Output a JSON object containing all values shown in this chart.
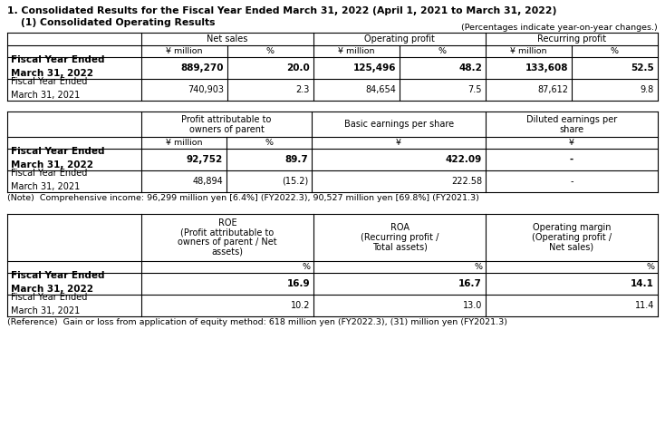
{
  "title1": "1. Consolidated Results for the Fiscal Year Ended March 31, 2022 (April 1, 2021 to March 31, 2022)",
  "title2": "    (1) Consolidated Operating Results",
  "pct_note": "(Percentages indicate year-on-year changes.)",
  "table1": {
    "col_groups": [
      "Net sales",
      "Operating profit",
      "Recurring profit"
    ],
    "sub_cols": [
      "¥ million",
      "%",
      "¥ million",
      "%",
      "¥ million",
      "%"
    ],
    "row1_label": [
      "Fiscal Year Ended",
      "March 31, 2022"
    ],
    "row1_bold": true,
    "row1_data": [
      "889,270",
      "20.0",
      "125,496",
      "48.2",
      "133,608",
      "52.5"
    ],
    "row2_label": [
      "Fiscal Year Ended",
      "March 31, 2021"
    ],
    "row2_bold": false,
    "row2_data": [
      "740,903",
      "2.3",
      "84,654",
      "7.5",
      "87,612",
      "9.8"
    ]
  },
  "table2": {
    "col_groups": [
      "Profit attributable to\nowners of parent",
      "Basic earnings per share",
      "Diluted earnings per\nshare"
    ],
    "sub_cols": [
      "¥ million",
      "%",
      "¥",
      "¥"
    ],
    "row1_label": [
      "Fiscal Year Ended",
      "March 31, 2022"
    ],
    "row1_bold": true,
    "row1_data": [
      "92,752",
      "89.7",
      "422.09",
      "-"
    ],
    "row2_label": [
      "Fiscal Year Ended",
      "March 31, 2021"
    ],
    "row2_bold": false,
    "row2_data": [
      "48,894",
      "(15.2)",
      "222.58",
      "-"
    ],
    "note": "(Note)  Comprehensive income: 96,299 million yen [6.4%] (FY2022.3), 90,527 million yen [69.8%] (FY2021.3)"
  },
  "table3": {
    "col_groups": [
      "ROE\n(Profit attributable to\nowners of parent / Net\nassets)",
      "ROA\n(Recurring profit /\nTotal assets)",
      "Operating margin\n(Operating profit /\nNet sales)"
    ],
    "sub_cols": [
      "%",
      "%",
      "%"
    ],
    "row1_label": [
      "Fiscal Year Ended",
      "March 31, 2022"
    ],
    "row1_bold": true,
    "row1_data": [
      "16.9",
      "16.7",
      "14.1"
    ],
    "row2_label": [
      "Fiscal Year Ended",
      "March 31, 2021"
    ],
    "row2_bold": false,
    "row2_data": [
      "10.2",
      "13.0",
      "11.4"
    ],
    "note": "(Reference)  Gain or loss from application of equity method: 618 million yen (FY2022.3), (31) million yen (FY2021.3)"
  }
}
